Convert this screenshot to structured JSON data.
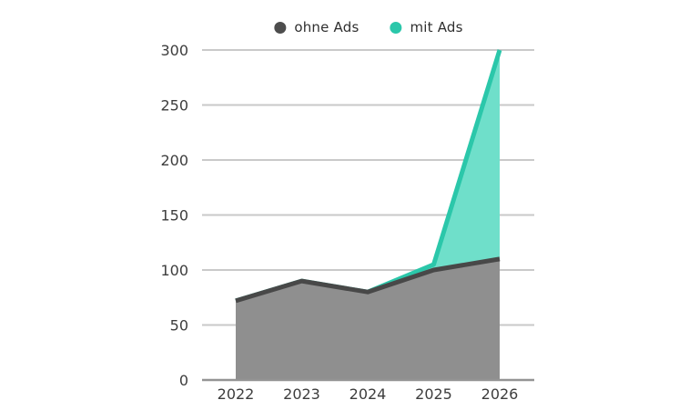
{
  "legend": [
    {
      "label": "ohne Ads",
      "color": "#4d4d4d"
    },
    {
      "label": "mit Ads",
      "color": "#2bc7aa"
    }
  ],
  "colors": {
    "gridline": "#c9c9c9",
    "axis": "#949494",
    "label": "#3d3d3d",
    "background": "#ffffff"
  },
  "chart_data": {
    "type": "area",
    "title": "",
    "xlabel": "",
    "ylabel": "",
    "categories": [
      "2022",
      "2023",
      "2024",
      "2025",
      "2026"
    ],
    "series": [
      {
        "name": "ohne Ads",
        "values": [
          72,
          90,
          80,
          100,
          110
        ],
        "stroke": "#484848",
        "fill": "#8f8f8f",
        "fill_opacity": 1
      },
      {
        "name": "mit Ads",
        "values": [
          72,
          90,
          80,
          105,
          300
        ],
        "stroke": "#2bc7aa",
        "fill": "#6fdfca",
        "fill_opacity": 1
      }
    ],
    "ylim": [
      0,
      300
    ],
    "ytick_step": 50,
    "yticks": [
      0,
      50,
      100,
      150,
      200,
      250,
      300
    ],
    "grid": true,
    "legend_position": "top-center"
  }
}
